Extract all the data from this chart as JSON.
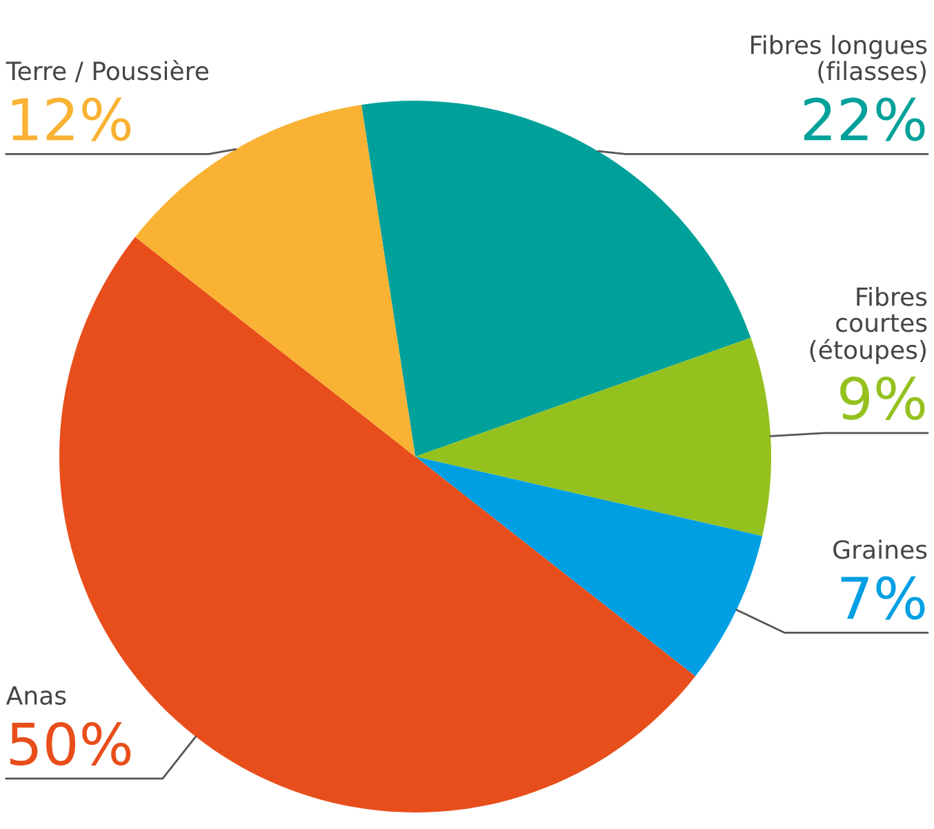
{
  "chart_data": {
    "type": "pie",
    "categories": [
      "Fibres longues\n(filasses)",
      "Fibres\ncourtes\n(étoupes)",
      "Graines",
      "Anas",
      "Terre / Poussière"
    ],
    "values": [
      22,
      9,
      7,
      50,
      12
    ],
    "colors": [
      "#00a19a",
      "#95c11f",
      "#009fe3",
      "#e84e1b",
      "#f9b233"
    ],
    "value_labels": [
      "22%",
      "9%",
      "7%",
      "50%",
      "12%"
    ]
  }
}
